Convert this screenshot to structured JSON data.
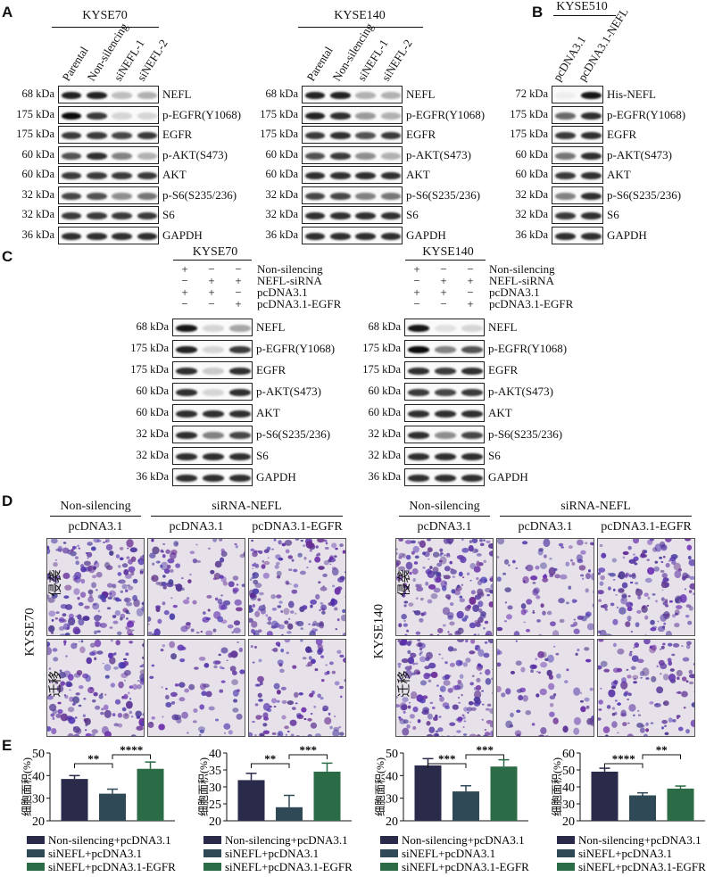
{
  "panelA": {
    "label": "A",
    "blots": [
      {
        "cell": "KYSE70",
        "lanes": [
          "Parental",
          "Non-silencing",
          "siNEFL-1",
          "siNEFL-2"
        ],
        "rows": [
          {
            "kda": "68 kDa",
            "protein": "NEFL"
          },
          {
            "kda": "175 kDa",
            "protein": "p-EGFR(Y1068)"
          },
          {
            "kda": "175 kDa",
            "protein": "EGFR"
          },
          {
            "kda": "60 kDa",
            "protein": "p-AKT(S473)"
          },
          {
            "kda": "60 kDa",
            "protein": "AKT"
          },
          {
            "kda": "32 kDa",
            "protein": "p-S6(S235/236)"
          },
          {
            "kda": "32 kDa",
            "protein": "S6"
          },
          {
            "kda": "36 kDa",
            "protein": "GAPDH"
          }
        ]
      },
      {
        "cell": "KYSE140",
        "lanes": [
          "Parental",
          "Non-silencing",
          "siNEFL-1",
          "siNEFL-2"
        ],
        "rows": [
          {
            "kda": "68 kDa",
            "protein": "NEFL"
          },
          {
            "kda": "175 kDa",
            "protein": "p-EGFR(Y1068)"
          },
          {
            "kda": "175 kDa",
            "protein": "EGFR"
          },
          {
            "kda": "60 kDa",
            "protein": "p-AKT(S473)"
          },
          {
            "kda": "60 kDa",
            "protein": "AKT"
          },
          {
            "kda": "32 kDa",
            "protein": "p-S6(S235/236)"
          },
          {
            "kda": "32 kDa",
            "protein": "S6"
          },
          {
            "kda": "36 kDa",
            "protein": "GAPDH"
          }
        ]
      }
    ]
  },
  "panelB": {
    "label": "B",
    "cell": "KYSE510",
    "lanes": [
      "pcDNA3.1",
      "pcDNA3.1-NEFL"
    ],
    "rows": [
      {
        "kda": "72 kDa",
        "protein": "His-NEFL"
      },
      {
        "kda": "175 kDa",
        "protein": "p-EGFR(Y1068)"
      },
      {
        "kda": "175 kDa",
        "protein": "EGFR"
      },
      {
        "kda": "60 kDa",
        "protein": "p-AKT(S473)"
      },
      {
        "kda": "60 kDa",
        "protein": "AKT"
      },
      {
        "kda": "32 kDa",
        "protein": "p-S6(S235/236)"
      },
      {
        "kda": "32 kDa",
        "protein": "S6"
      },
      {
        "kda": "36 kDa",
        "protein": "GAPDH"
      }
    ]
  },
  "panelC": {
    "label": "C",
    "conditions": [
      "Non-silencing",
      "NEFL-siRNA",
      "pcDNA3.1",
      "pcDNA3.1-EGFR"
    ],
    "signs": [
      [
        "+",
        "−",
        "−"
      ],
      [
        "−",
        "+",
        "+"
      ],
      [
        "+",
        "+",
        "−"
      ],
      [
        "−",
        "−",
        "+"
      ]
    ],
    "blots": [
      {
        "cell": "KYSE70",
        "rows": [
          {
            "kda": "68 kDa",
            "protein": "NEFL"
          },
          {
            "kda": "175 kDa",
            "protein": "p-EGFR(Y1068)"
          },
          {
            "kda": "175 kDa",
            "protein": "EGFR"
          },
          {
            "kda": "60 kDa",
            "protein": "p-AKT(S473)"
          },
          {
            "kda": "60 kDa",
            "protein": "AKT"
          },
          {
            "kda": "32 kDa",
            "protein": "p-S6(S235/236)"
          },
          {
            "kda": "32 kDa",
            "protein": "S6"
          },
          {
            "kda": "36 kDa",
            "protein": "GAPDH"
          }
        ]
      },
      {
        "cell": "KYSE140",
        "rows": [
          {
            "kda": "68 kDa",
            "protein": "NEFL"
          },
          {
            "kda": "175 kDa",
            "protein": "p-EGFR(Y1068)"
          },
          {
            "kda": "175 kDa",
            "protein": "EGFR"
          },
          {
            "kda": "60 kDa",
            "protein": "p-AKT(S473)"
          },
          {
            "kda": "60 kDa",
            "protein": "AKT"
          },
          {
            "kda": "32 kDa",
            "protein": "p-S6(S235/236)"
          },
          {
            "kda": "32 kDa",
            "protein": "S6"
          },
          {
            "kda": "36 kDa",
            "protein": "GAPDH"
          }
        ]
      }
    ]
  },
  "panelD": {
    "label": "D",
    "groups": [
      {
        "cell": "KYSE70",
        "header1": [
          "Non-silencing",
          "siRNA-NEFL"
        ],
        "header2": [
          "pcDNA3.1",
          "pcDNA3.1",
          "pcDNA3.1-EGFR"
        ],
        "rows": [
          "侵袭",
          "迁移"
        ]
      },
      {
        "cell": "KYSE140",
        "header1": [
          "Non-silencing",
          "siRNA-NEFL"
        ],
        "header2": [
          "pcDNA3.1",
          "pcDNA3.1",
          "pcDNA3.1-EGFR"
        ],
        "rows": [
          "侵袭",
          "迁移"
        ]
      }
    ]
  },
  "panelE": {
    "label": "E"
  },
  "colors": {
    "navy": "#2a2a4a",
    "slate": "#2f4a56",
    "green": "#2b6b45"
  },
  "chart_data": [
    {
      "type": "bar",
      "ylabel": "细胞面积(%)",
      "ylim": [
        20,
        50
      ],
      "yticks": [
        20,
        30,
        40,
        50
      ],
      "categories": [
        "Non-silencing+pcDNA3.1",
        "siNEFL+pcDNA3.1",
        "siNEFL+pcDNA3.1-EGFR"
      ],
      "values": [
        38.5,
        32,
        43
      ],
      "errors": [
        1.5,
        2,
        3
      ],
      "sig": [
        {
          "from": 0,
          "to": 1,
          "label": "**"
        },
        {
          "from": 1,
          "to": 2,
          "label": "****"
        }
      ],
      "legend": [
        "Non-silencing+pcDNA3.1",
        "siNEFL+pcDNA3.1",
        "siNEFL+pcDNA3.1-EGFR"
      ]
    },
    {
      "type": "bar",
      "ylabel": "细胞面积(%)",
      "ylim": [
        20,
        40
      ],
      "yticks": [
        20,
        25,
        30,
        35,
        40
      ],
      "categories": [
        "Non-silencing+pcDNA3.1",
        "siNEFL+pcDNA3.1",
        "siNEFL+pcDNA3.1-EGFR"
      ],
      "values": [
        32,
        24,
        34.5
      ],
      "errors": [
        2,
        3.5,
        2.5
      ],
      "sig": [
        {
          "from": 0,
          "to": 1,
          "label": "**"
        },
        {
          "from": 1,
          "to": 2,
          "label": "***"
        }
      ],
      "legend": [
        "Non-silencing+pcDNA3.1",
        "siNEFL+pcDNA3.1",
        "siNEFL+pcDNA3.1-EGFR"
      ]
    },
    {
      "type": "bar",
      "ylabel": "细胞面积(%)",
      "ylim": [
        20,
        50
      ],
      "yticks": [
        20,
        30,
        40,
        50
      ],
      "categories": [
        "Non-silencing+pcDNA3.1",
        "siNEFL+pcDNA3.1",
        "siNEFL+pcDNA3.1-EGFR"
      ],
      "values": [
        44.5,
        33,
        44
      ],
      "errors": [
        3,
        2.5,
        3
      ],
      "sig": [
        {
          "from": 0,
          "to": 1,
          "label": "***"
        },
        {
          "from": 1,
          "to": 2,
          "label": "***"
        }
      ],
      "legend": [
        "Non-silencing+pcDNA3.1",
        "siNEFL+pcDNA3.1",
        "siNEFL+pcDNA3.1-EGFR"
      ]
    },
    {
      "type": "bar",
      "ylabel": "细胞面积(%)",
      "ylim": [
        20,
        60
      ],
      "yticks": [
        20,
        30,
        40,
        50,
        60
      ],
      "categories": [
        "Non-silencing+pcDNA3.1",
        "siNEFL+pcDNA3.1",
        "siNEFL+pcDNA3.1-EGFR"
      ],
      "values": [
        49,
        35,
        39
      ],
      "errors": [
        2,
        1.5,
        1.5
      ],
      "sig": [
        {
          "from": 0,
          "to": 1,
          "label": "****"
        },
        {
          "from": 1,
          "to": 2,
          "label": "**"
        }
      ],
      "legend": [
        "Non-silencing+pcDNA3.1",
        "siNEFL+pcDNA3.1",
        "siNEFL+pcDNA3.1-EGFR"
      ]
    }
  ]
}
